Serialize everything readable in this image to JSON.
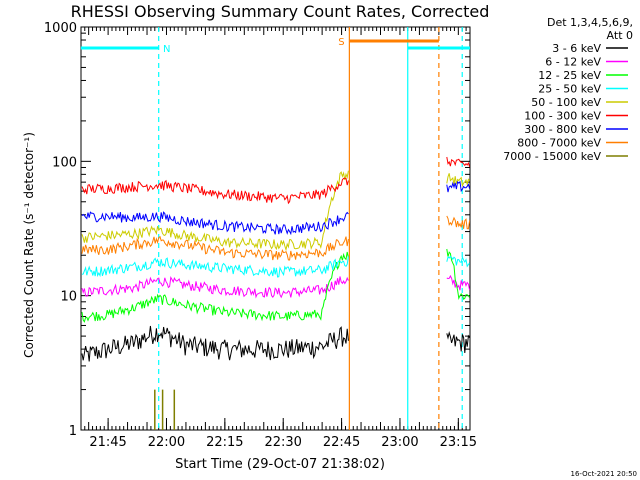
{
  "chart_data": {
    "type": "line",
    "title": "RHESSI Observing Summary Count Rates, Corrected",
    "xlabel": "Start Time (29-Oct-07 21:38:02)",
    "ylabel": "Corrected Count Rate (s⁻¹ detector⁻¹)",
    "yscale": "log",
    "ylim": [
      1,
      1000
    ],
    "xlim": [
      "21:38:02",
      "23:18:00"
    ],
    "x_ticks": [
      "21:45",
      "22:00",
      "22:15",
      "22:30",
      "22:45",
      "23:00",
      "23:15"
    ],
    "y_ticks": [
      "1",
      "10",
      "100",
      "1000"
    ],
    "legend": {
      "header": [
        "Det 1,3,4,5,6,9,",
        "Att 0"
      ],
      "placement": "right"
    },
    "annotation_timestamp": "16-Oct-2021 20:50",
    "series": [
      {
        "name": "3 - 6 keV",
        "color": "#000000",
        "x": [
          "21:38",
          "21:45",
          "21:52",
          "21:58",
          "22:05",
          "22:15",
          "22:30",
          "22:40",
          "22:45",
          "23:13",
          "23:15"
        ],
        "y": [
          3.5,
          4,
          4.5,
          5.5,
          4.3,
          4,
          4,
          4.2,
          5,
          4.5,
          4.5
        ]
      },
      {
        "name": "6 - 12 keV",
        "color": "#ff00ff",
        "x": [
          "21:38",
          "21:45",
          "21:52",
          "21:58",
          "22:05",
          "22:15",
          "22:30",
          "22:40",
          "22:45",
          "23:13",
          "23:15"
        ],
        "y": [
          10.5,
          11,
          11.5,
          13,
          12,
          11,
          10.5,
          11,
          13,
          13,
          12
        ]
      },
      {
        "name": "12 - 25 keV",
        "color": "#00ff00",
        "x": [
          "21:38",
          "21:45",
          "21:52",
          "21:58",
          "22:05",
          "22:15",
          "22:30",
          "22:40",
          "22:45",
          "23:13",
          "23:15"
        ],
        "y": [
          7,
          7.2,
          8.2,
          9.5,
          8.5,
          7.5,
          7,
          7.3,
          20,
          21,
          10
        ]
      },
      {
        "name": "25 - 50 keV",
        "color": "#00ffff",
        "x": [
          "21:38",
          "21:45",
          "21:52",
          "21:58",
          "22:05",
          "22:15",
          "22:30",
          "22:40",
          "22:45",
          "23:13",
          "23:15"
        ],
        "y": [
          15,
          15.5,
          16.5,
          18,
          17,
          16,
          15,
          15.5,
          18,
          19,
          18
        ]
      },
      {
        "name": "50 - 100 keV",
        "color": "#cccc00",
        "x": [
          "21:38",
          "21:45",
          "21:52",
          "21:58",
          "22:05",
          "22:15",
          "22:30",
          "22:40",
          "22:45",
          "23:13",
          "23:15"
        ],
        "y": [
          27,
          28,
          29,
          31,
          28,
          25,
          24,
          25,
          80,
          75,
          70
        ]
      },
      {
        "name": "100 - 300 keV",
        "color": "#ff0000",
        "x": [
          "21:38",
          "21:45",
          "21:52",
          "21:58",
          "22:05",
          "22:15",
          "22:30",
          "22:40",
          "22:45",
          "23:13",
          "23:15"
        ],
        "y": [
          62,
          63,
          65,
          67,
          63,
          57,
          53,
          57,
          70,
          100,
          95
        ]
      },
      {
        "name": "300 - 800 keV",
        "color": "#0000ff",
        "x": [
          "21:38",
          "21:45",
          "21:52",
          "21:58",
          "22:05",
          "22:15",
          "22:30",
          "22:40",
          "22:45",
          "23:13",
          "23:15"
        ],
        "y": [
          39,
          39,
          38,
          39,
          36,
          33,
          31,
          33,
          38,
          63,
          65
        ]
      },
      {
        "name": "800 - 7000 keV",
        "color": "#ff7f00",
        "x": [
          "21:38",
          "21:45",
          "21:52",
          "21:58",
          "22:05",
          "22:15",
          "22:30",
          "22:40",
          "22:45",
          "23:13",
          "23:15"
        ],
        "y": [
          22,
          22,
          24,
          26,
          24,
          21,
          20,
          21,
          25,
          37,
          34
        ]
      },
      {
        "name": "7000 - 15000 keV",
        "color": "#7f7f00",
        "x": [
          "21:57",
          "21:59",
          "22:02"
        ],
        "y": [
          2,
          2,
          2
        ]
      }
    ],
    "flag_bars": [
      {
        "label": "N",
        "color": "#00ffff",
        "start": "21:38",
        "end": "21:58"
      },
      {
        "label": "N",
        "color": "#00ffff",
        "start": "23:02",
        "end": "23:18"
      },
      {
        "label": "S",
        "color": "#ff7f00",
        "start": "22:47",
        "end": "23:10"
      }
    ],
    "vertical_markers": [
      {
        "color": "#00ffff",
        "style": "dashed",
        "x": "21:58"
      },
      {
        "color": "#ff7f00",
        "style": "solid",
        "x": "22:47"
      },
      {
        "color": "#00ffff",
        "style": "solid",
        "x": "23:02"
      },
      {
        "color": "#ff7f00",
        "style": "dashed",
        "x": "23:10"
      },
      {
        "color": "#00ffff",
        "style": "dashed",
        "x": "23:16"
      }
    ]
  }
}
